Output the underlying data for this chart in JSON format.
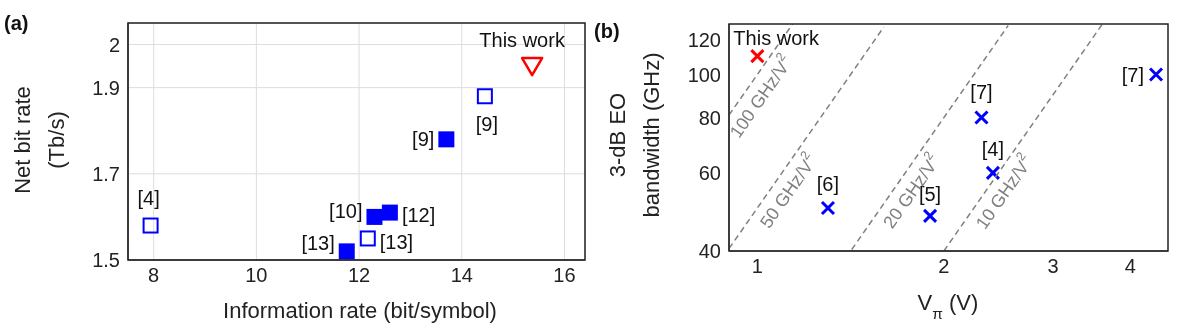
{
  "chart_data": [
    {
      "type": "scatter",
      "title": "(a)",
      "xlabel": "Information rate (bit/symbol)",
      "ylabel": "Net bit rate\n(Tb/s)",
      "xlim": [
        7.5,
        16.4
      ],
      "xticks": [
        8,
        10,
        12,
        14,
        16
      ],
      "ylim": [
        1.5,
        2.05
      ],
      "yticks": [
        1.5,
        1.7,
        1.9,
        2
      ],
      "grid": true,
      "series": [
        {
          "color": "#0000ff",
          "marker": "square",
          "x": [
            7.94,
            12.17,
            14.45
          ],
          "values": [
            1.58,
            1.55,
            1.88
          ]
        },
        {
          "color": "#0000ff",
          "marker": "square",
          "x": [
            11.76,
            12.3,
            12.6,
            13.7
          ],
          "values": [
            1.52,
            1.6,
            1.61,
            1.78
          ]
        },
        {
          "color": "#ff0000",
          "marker": "triangle",
          "x": [
            15.37
          ],
          "values": [
            1.95
          ]
        }
      ],
      "annotations": [
        {
          "text": "[4]",
          "x": 7.94,
          "y": 1.58
        },
        {
          "text": "[13]",
          "x": 11.76,
          "y": 1.52
        },
        {
          "text": "[10]",
          "x": 12.3,
          "y": 1.6
        },
        {
          "text": "[12]",
          "x": 12.6,
          "y": 1.61
        },
        {
          "text": "[13]",
          "x": 12.17,
          "y": 1.55
        },
        {
          "text": "[9]",
          "x": 13.7,
          "y": 1.78
        },
        {
          "text": "[9]",
          "x": 14.45,
          "y": 1.88
        },
        {
          "text": "This work",
          "x": 15.37,
          "y": 1.95
        }
      ]
    },
    {
      "type": "scatter",
      "title": "(b)",
      "xlabel": "V$_{π}$ (V)",
      "ylabel": "3-dB EO\nbandwidth (GHz)",
      "log": "xy",
      "xlim": [
        0.9,
        4.6
      ],
      "xticks": [
        1,
        2,
        3,
        4
      ],
      "ylim": [
        40,
        130
      ],
      "yticks": [
        40,
        60,
        80,
        100,
        120
      ],
      "grid": false,
      "series": [
        {
          "color": "#ff0000",
          "marker": "cross",
          "x": [
            1
          ],
          "values": [
            110
          ]
        },
        {
          "color": "#0000ff",
          "marker": "cross",
          "x": [
            1.3,
            1.9,
            2.3,
            2.4,
            4.4
          ],
          "values": [
            50,
            48,
            80,
            60,
            100
          ]
        },
        {
          "type": "line",
          "name": "100 GHz/V$^{2}$",
          "color": "#808080",
          "line_style": "dashed",
          "marker": "none",
          "x": [
            0.9,
            1.14
          ],
          "values": [
            81,
            130
          ]
        },
        {
          "type": "line",
          "name": "50 GHz/V$^{2}$",
          "color": "#808080",
          "line_style": "dashed",
          "marker": "none",
          "x": [
            0.9,
            1.6
          ],
          "values": [
            40.5,
            128
          ]
        },
        {
          "type": "line",
          "name": "20 GHz/V$^{2}$",
          "color": "#808080",
          "line_style": "dashed",
          "marker": "none",
          "x": [
            1.42,
            2.54
          ],
          "values": [
            40.3,
            129
          ]
        },
        {
          "type": "line",
          "name": "10 GHz/V$^{2}$",
          "color": "#808080",
          "line_style": "dashed",
          "marker": "none",
          "x": [
            2,
            3.6
          ],
          "values": [
            40,
            129.6
          ]
        }
      ],
      "annotations": [
        {
          "text": "This work",
          "x": 1,
          "y": 110
        },
        {
          "text": "[6]",
          "x": 1.3,
          "y": 50
        },
        {
          "text": "[5]",
          "x": 1.9,
          "y": 48
        },
        {
          "text": "[7]",
          "x": 2.3,
          "y": 80
        },
        {
          "text": "[4]",
          "x": 2.4,
          "y": 60
        },
        {
          "text": "[7]",
          "x": 4.4,
          "y": 100
        }
      ]
    }
  ]
}
